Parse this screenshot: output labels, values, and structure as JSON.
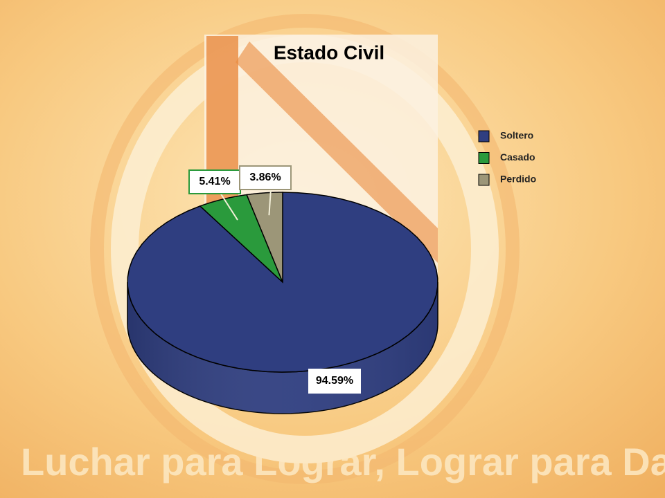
{
  "chart_data": {
    "type": "pie3d",
    "title": "Estado Civil",
    "categories": [
      "Soltero",
      "Casado",
      "Perdido"
    ],
    "values": [
      94.59,
      5.41,
      3.86
    ],
    "value_labels": [
      "94.59%",
      "5.41%",
      "3.86%"
    ],
    "colors": [
      "#2f3e80",
      "#2a9a3c",
      "#9c9678"
    ],
    "legend": "right"
  },
  "slogan": "Luchar para Lograr, Lograr para Dar"
}
